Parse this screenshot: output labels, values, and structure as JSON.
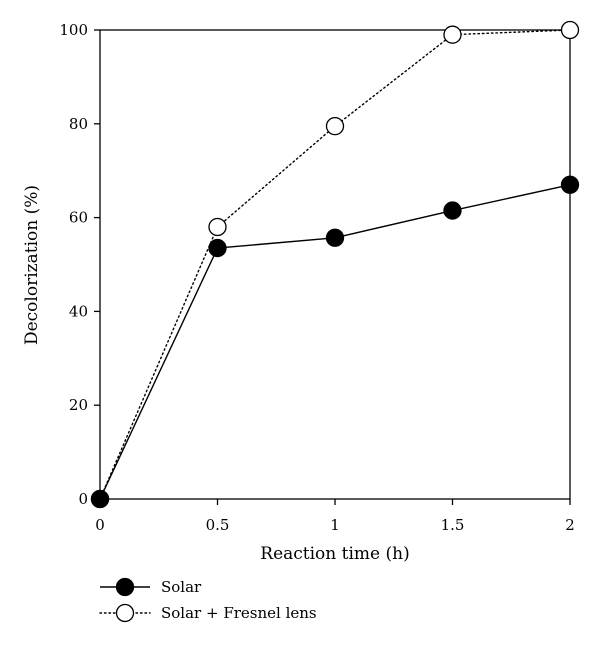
{
  "chart_data": {
    "type": "line",
    "x": [
      0,
      0.5,
      1,
      1.5,
      2
    ],
    "series": [
      {
        "name": "Solar",
        "values": [
          0,
          53.5,
          55.7,
          61.5,
          67
        ],
        "marker": "filled-circle",
        "line_style": "solid",
        "color": "#000000"
      },
      {
        "name": "Solar + Fresnel lens",
        "values": [
          0,
          58,
          79.5,
          99,
          100
        ],
        "marker": "open-circle",
        "line_style": "dotted",
        "color": "#000000"
      }
    ],
    "xlabel": "Reaction time (h)",
    "ylabel": "Decolorization (%)",
    "xlim": [
      0,
      2
    ],
    "ylim": [
      0,
      100
    ],
    "x_ticks": [
      "0",
      "0.5",
      "1",
      "1.5",
      "2"
    ],
    "y_ticks": [
      "0",
      "20",
      "40",
      "60",
      "80",
      "100"
    ],
    "grid": false,
    "legend_position": "bottom-left"
  }
}
